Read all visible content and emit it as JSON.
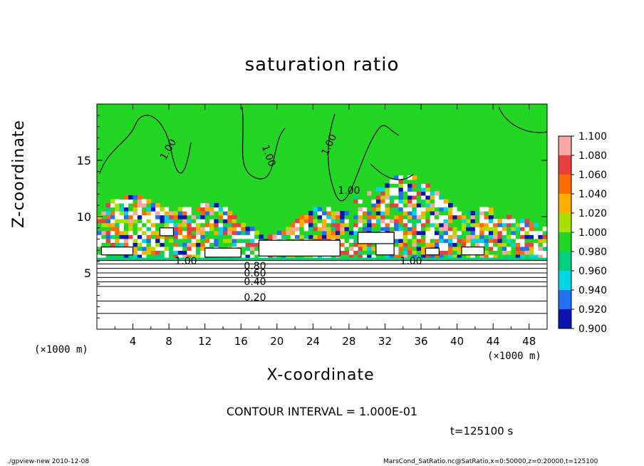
{
  "chart_data": {
    "type": "heatmap",
    "title": "saturation ratio",
    "xlabel": "X-coordinate",
    "ylabel": "Z-coordinate",
    "x_units": "(×1000 m)",
    "x_units_right": "(×1000 m)",
    "y_units": "(×1000 m)",
    "xlim": [
      0,
      50
    ],
    "ylim": [
      0,
      20
    ],
    "x_ticks": [
      4,
      8,
      12,
      16,
      20,
      24,
      28,
      32,
      36,
      40,
      44,
      48
    ],
    "y_ticks": [
      5,
      10,
      15
    ],
    "colorbar": {
      "levels": [
        "1.100",
        "1.080",
        "1.060",
        "1.040",
        "1.020",
        "1.000",
        "0.980",
        "0.960",
        "0.940",
        "0.920",
        "0.900"
      ],
      "colors": [
        "#f8a6a6",
        "#e84040",
        "#ff6a00",
        "#ffae00",
        "#a8e000",
        "#23d623",
        "#00d080",
        "#00d8e8",
        "#2070f0",
        "#0a14b0",
        "#6a10b0"
      ]
    },
    "contour_labels": [
      "1.00",
      "1.00",
      "1.00",
      "1.00",
      "1.00",
      "1.00",
      "0.80",
      "0.60",
      "0.40",
      "0.20"
    ],
    "contour_interval_text": "CONTOUR INTERVAL = 1.000E-01",
    "time_text": "t=125100  s",
    "footer_left": "./gpview-new   2010-12-08",
    "footer_right": "MarsCond_SatRatio.nc@SatRatio,x=0:50000,z=0:20000,t=125100"
  }
}
